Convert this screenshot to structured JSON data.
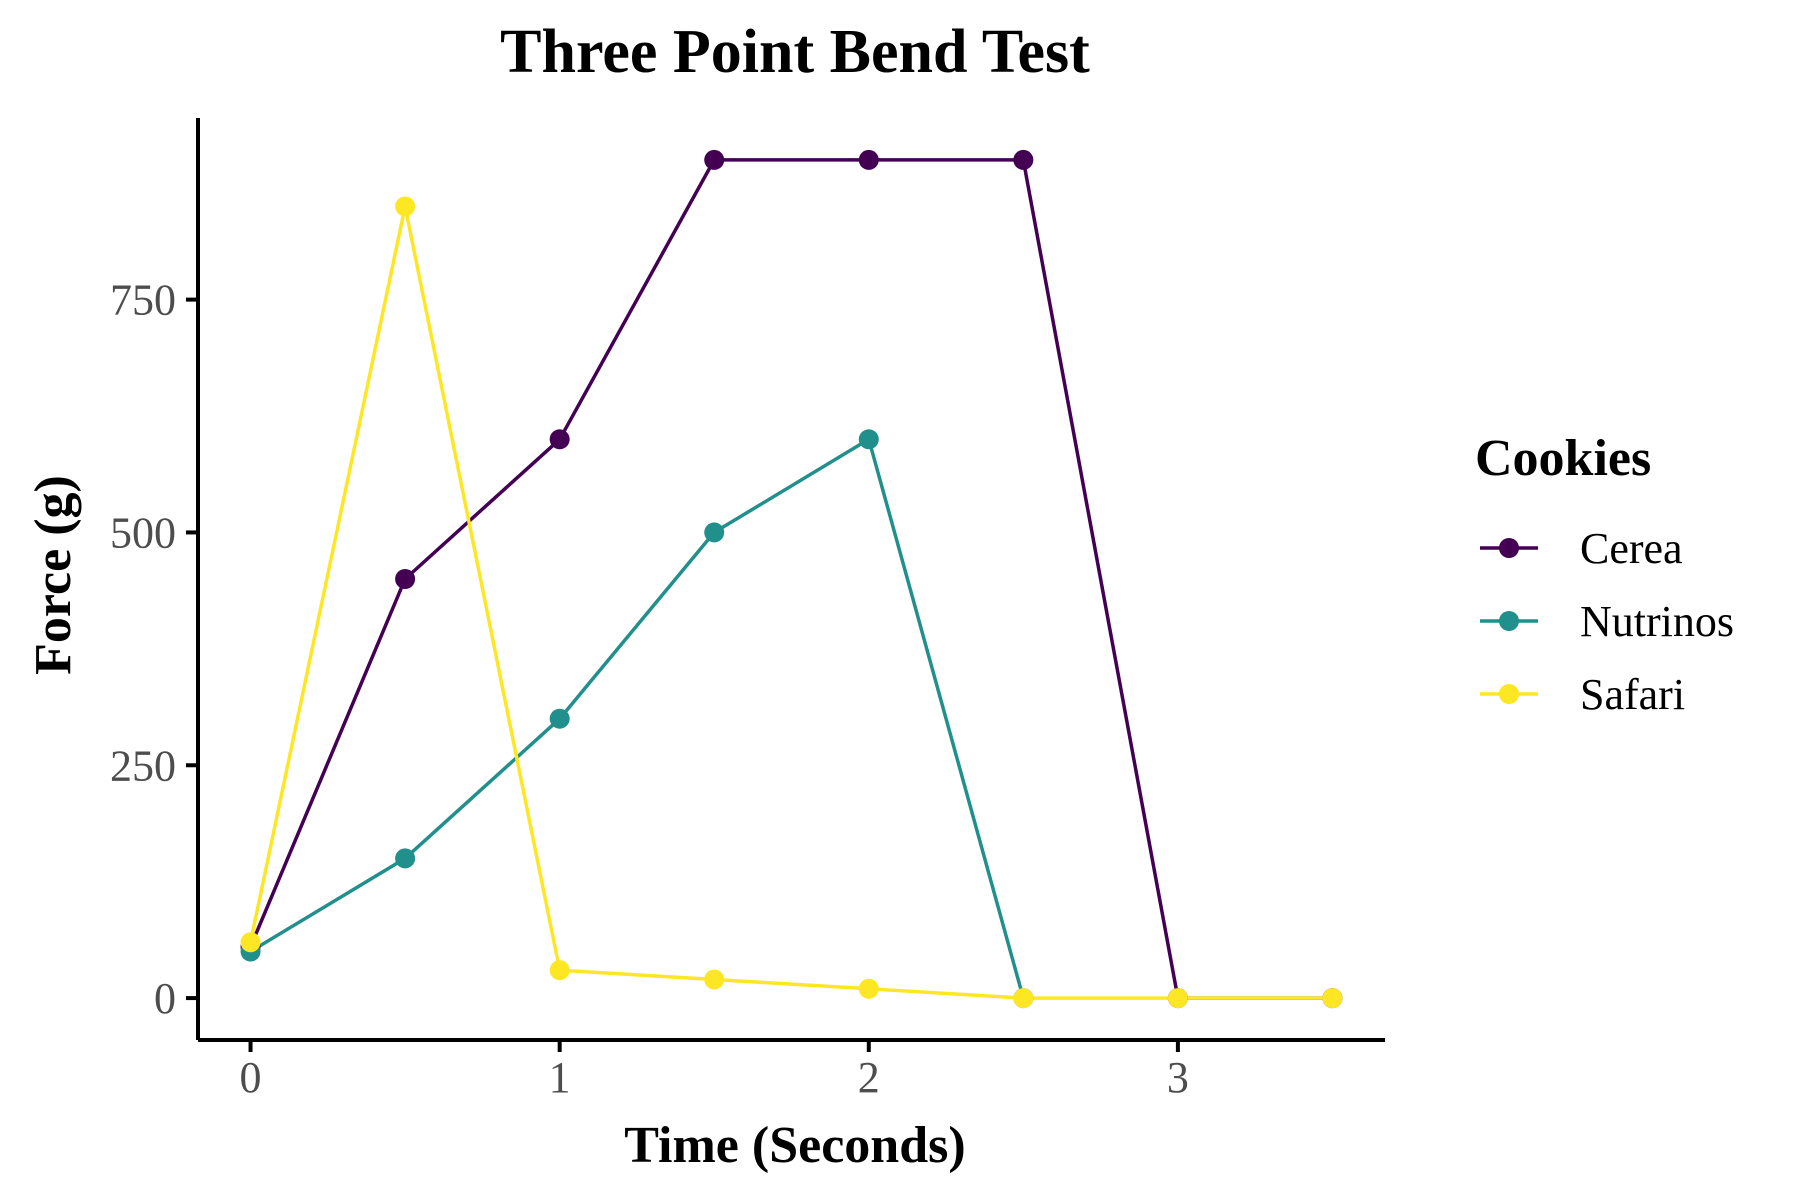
{
  "chart_data": {
    "type": "line",
    "title": "Three Point Bend Test",
    "xlabel": "Time (Seconds)",
    "ylabel": "Force (g)",
    "xlim": [
      -0.17,
      3.67
    ],
    "ylim": [
      -45,
      945
    ],
    "x_ticks": [
      0,
      1,
      2,
      3
    ],
    "x_tick_labels": [
      "0",
      "1",
      "2",
      "3"
    ],
    "y_ticks": [
      0,
      250,
      500,
      750
    ],
    "y_tick_labels": [
      "0",
      "250",
      "500",
      "750"
    ],
    "grid": false,
    "legend": {
      "title": "Cookies",
      "position": "right"
    },
    "series": [
      {
        "name": "Cerea",
        "color": "#440154",
        "x": [
          0,
          0.5,
          1,
          1.5,
          2,
          2.5,
          3,
          3.5
        ],
        "y": [
          55,
          450,
          600,
          900,
          900,
          900,
          0,
          0
        ]
      },
      {
        "name": "Nutrinos",
        "color": "#21908C",
        "x": [
          0,
          0.5,
          1,
          1.5,
          2,
          2.5
        ],
        "y": [
          50,
          150,
          300,
          500,
          600,
          0
        ]
      },
      {
        "name": "Safari",
        "color": "#FDE725",
        "x": [
          0,
          0.5,
          1,
          1.5,
          2,
          2.5,
          3,
          3.5
        ],
        "y": [
          60,
          850,
          30,
          20,
          10,
          0,
          0,
          0
        ]
      }
    ]
  }
}
